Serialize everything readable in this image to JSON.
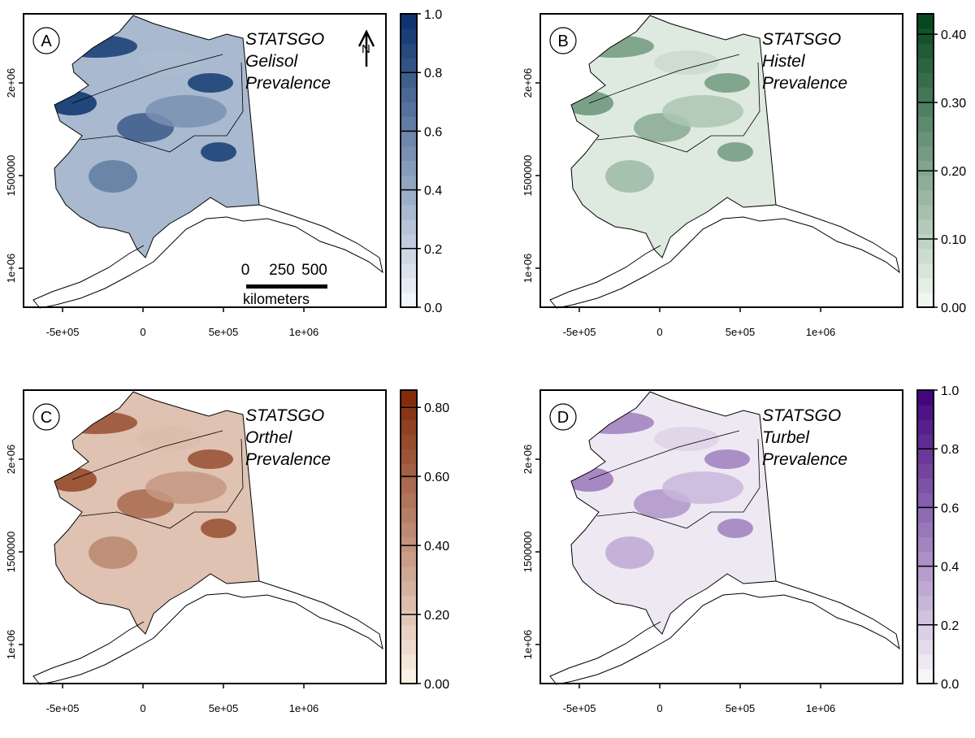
{
  "panels": [
    {
      "label": "A",
      "title": [
        "STATSGO",
        "Gelisol",
        "Prevalence"
      ],
      "ramp": [
        "#f7fbff",
        "#08306b"
      ],
      "cbar": {
        "max": 1.0,
        "ticks": [
          "0.0",
          "0.2",
          "0.4",
          "0.6",
          "0.8",
          "1.0"
        ],
        "tick_values": [
          0,
          0.2,
          0.4,
          0.6,
          0.8,
          1.0
        ]
      },
      "density": 0.65,
      "north_arrow": "N",
      "scale_bar": {
        "labels": [
          "0",
          "250",
          "500"
        ],
        "unit": "kilometers"
      }
    },
    {
      "label": "B",
      "title": [
        "STATSGO",
        "Histel",
        "Prevalence"
      ],
      "ramp": [
        "#f7fcf5",
        "#00441b"
      ],
      "cbar": {
        "max": 0.43,
        "ticks": [
          "0.00",
          "0.10",
          "0.20",
          "0.30",
          "0.40"
        ],
        "tick_values": [
          0,
          0.1,
          0.2,
          0.3,
          0.4
        ]
      },
      "density": 0.2
    },
    {
      "label": "C",
      "title": [
        "STATSGO",
        "Orthel",
        "Prevalence"
      ],
      "ramp": [
        "#fff5eb",
        "#7f2704"
      ],
      "cbar": {
        "max": 0.85,
        "ticks": [
          "0.00",
          "0.20",
          "0.40",
          "0.60",
          "0.80"
        ],
        "tick_values": [
          0,
          0.2,
          0.4,
          0.6,
          0.8
        ]
      },
      "density": 0.5
    },
    {
      "label": "D",
      "title": [
        "STATSGO",
        "Turbel",
        "Prevalence"
      ],
      "ramp": [
        "#fcfbfd",
        "#3f007d"
      ],
      "cbar": {
        "max": 1.0,
        "ticks": [
          "0.0",
          "0.2",
          "0.4",
          "0.6",
          "0.8",
          "1.0"
        ],
        "tick_values": [
          0,
          0.2,
          0.4,
          0.6,
          0.8,
          1.0
        ]
      },
      "density": 0.15
    }
  ],
  "x_ticks": [
    "-5e+05",
    "0",
    "5e+05",
    "1e+06"
  ],
  "y_ticks": [
    "1e+06",
    "1500000",
    "2e+06"
  ]
}
